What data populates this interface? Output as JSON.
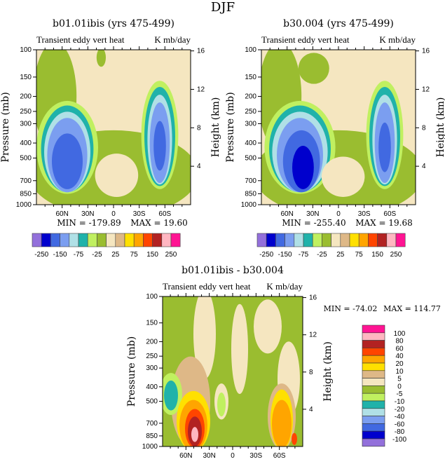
{
  "figure_title": "DJF",
  "colors": [
    "#9370DB",
    "#0000CD",
    "#4169E1",
    "#7B9EF0",
    "#B0E0E6",
    "#20B2AA",
    "#C0F060",
    "#9ABD30",
    "#F5E6C0",
    "#DEB887",
    "#FFE000",
    "#FFA500",
    "#FF4500",
    "#B22222",
    "#FFB6C1",
    "#FF1493"
  ],
  "chart_data": [
    {
      "type": "heatmap",
      "title": "b01.01ibis (yrs 475-499)",
      "left_string": "Transient eddy vert heat",
      "right_string": "K mb/day",
      "ylabel": "Pressure (mb)",
      "ylabel_right": "Height (km)",
      "yscale": "log",
      "ylim": [
        1000,
        100
      ],
      "xlim": [
        90,
        -90
      ],
      "x_ticks": [
        "60N",
        "30N",
        "0",
        "30S",
        "60S"
      ],
      "y_ticks": [
        "100",
        "150",
        "200",
        "250",
        "300",
        "400",
        "500",
        "700",
        "850",
        "1000"
      ],
      "y_right_ticks": [
        "16",
        "12",
        "8",
        "4"
      ],
      "min_label": "MIN = -179.89",
      "max_label": "MAX =  19.60",
      "colorbar_labels": [
        "-250",
        "-150",
        "-75",
        "-25",
        "25",
        "75",
        "150",
        "250"
      ]
    },
    {
      "type": "heatmap",
      "title": "b30.004 (yrs 475-499)",
      "left_string": "Transient eddy vert heat",
      "right_string": "K mb/day",
      "ylabel": "Pressure (mb)",
      "ylabel_right": "Height (km)",
      "yscale": "log",
      "ylim": [
        1000,
        100
      ],
      "xlim": [
        90,
        -90
      ],
      "x_ticks": [
        "60N",
        "30N",
        "0",
        "30S",
        "60S"
      ],
      "y_ticks": [
        "100",
        "150",
        "200",
        "250",
        "300",
        "400",
        "500",
        "700",
        "850",
        "1000"
      ],
      "y_right_ticks": [
        "16",
        "12",
        "8",
        "4"
      ],
      "min_label": "MIN = -255.40",
      "max_label": "MAX =  19.68",
      "colorbar_labels": [
        "-250",
        "-150",
        "-75",
        "-25",
        "25",
        "75",
        "150",
        "250"
      ]
    },
    {
      "type": "heatmap",
      "title": "b01.01ibis - b30.004",
      "left_string": "Transient eddy vert heat",
      "right_string": "K mb/day",
      "ylabel": "Pressure (mb)",
      "ylabel_right": "Height (km)",
      "yscale": "log",
      "ylim": [
        1000,
        100
      ],
      "xlim": [
        90,
        -90
      ],
      "x_ticks": [
        "60N",
        "30N",
        "0",
        "30S",
        "60S"
      ],
      "y_ticks": [
        "100",
        "150",
        "200",
        "250",
        "300",
        "400",
        "500",
        "700",
        "850",
        "1000"
      ],
      "y_right_ticks": [
        "16",
        "12",
        "8",
        "4"
      ],
      "min_label": "MIN = -74.02",
      "max_label": "MAX = 114.77",
      "colorbar_labels": [
        "100",
        "80",
        "60",
        "40",
        "20",
        "10",
        "5",
        "0",
        "-5",
        "-10",
        "-20",
        "-40",
        "-60",
        "-80",
        "-100"
      ]
    }
  ]
}
